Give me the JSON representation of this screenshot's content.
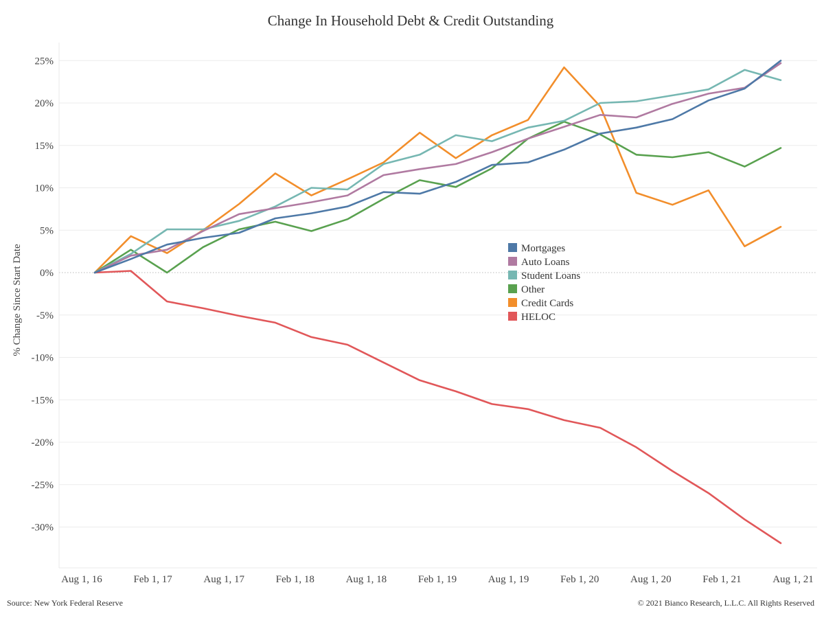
{
  "chart_data": {
    "type": "line",
    "title": "Change In Household Debt & Credit Outstanding",
    "xlabel": "",
    "ylabel": "% Change Since Start Date",
    "ylim": [
      -35,
      28
    ],
    "yticks": [
      25,
      20,
      15,
      10,
      5,
      0,
      -5,
      -10,
      -15,
      -20,
      -25,
      -30
    ],
    "ytick_labels": [
      "25%",
      "20%",
      "15%",
      "10%",
      "5%",
      "0%",
      "-5%",
      "-10%",
      "-15%",
      "-20%",
      "-25%",
      "-30%"
    ],
    "x_tick_labels": [
      "Aug 1, 16",
      "Feb 1, 17",
      "Aug 1, 17",
      "Feb 1, 18",
      "Aug 1, 18",
      "Feb 1, 19",
      "Aug 1, 19",
      "Feb 1, 20",
      "Aug 1, 20",
      "Feb 1, 21",
      "Aug 1, 21"
    ],
    "x": [
      "2016-Q3",
      "2016-Q4",
      "2017-Q1",
      "2017-Q2",
      "2017-Q3",
      "2017-Q4",
      "2018-Q1",
      "2018-Q2",
      "2018-Q3",
      "2018-Q4",
      "2019-Q1",
      "2019-Q2",
      "2019-Q3",
      "2019-Q4",
      "2020-Q1",
      "2020-Q2",
      "2020-Q3",
      "2020-Q4",
      "2021-Q1",
      "2021-Q2"
    ],
    "zero_line": true,
    "grid": "horizontal",
    "legend_position": "center-right",
    "series": [
      {
        "name": "Mortgages",
        "color": "#4e79a7",
        "values": [
          0,
          1.6,
          3.3,
          4.1,
          4.7,
          6.4,
          7.0,
          7.8,
          9.5,
          9.3,
          10.7,
          12.7,
          13.0,
          14.5,
          16.4,
          17.1,
          18.1,
          20.3,
          21.7,
          25.0
        ]
      },
      {
        "name": "Auto Loans",
        "color": "#b07aa1",
        "values": [
          0,
          2.0,
          2.7,
          4.9,
          6.9,
          7.6,
          8.3,
          9.1,
          11.5,
          12.2,
          12.8,
          14.2,
          15.8,
          17.2,
          18.6,
          18.3,
          19.9,
          21.1,
          21.8,
          24.7
        ]
      },
      {
        "name": "Student Loans",
        "color": "#76b7b2",
        "values": [
          0,
          2.2,
          5.1,
          5.1,
          6.1,
          7.8,
          10.0,
          9.8,
          12.8,
          13.9,
          16.2,
          15.5,
          17.1,
          17.9,
          20.0,
          20.2,
          20.9,
          21.6,
          23.9,
          22.7
        ]
      },
      {
        "name": "Other",
        "color": "#59a14f",
        "values": [
          0,
          2.7,
          0,
          3.0,
          5.1,
          6.0,
          4.9,
          6.3,
          8.7,
          10.9,
          10.1,
          12.3,
          15.8,
          17.8,
          16.3,
          13.9,
          13.6,
          14.2,
          12.5,
          14.7
        ]
      },
      {
        "name": "Credit Cards",
        "color": "#f28e2b",
        "values": [
          0,
          4.3,
          2.3,
          5.0,
          8.1,
          11.7,
          9.1,
          11.0,
          13.0,
          16.5,
          13.5,
          16.2,
          18.0,
          24.2,
          19.6,
          9.4,
          8.0,
          9.7,
          3.1,
          5.4
        ]
      },
      {
        "name": "HELOC",
        "color": "#e15759",
        "values": [
          0,
          0.2,
          -3.4,
          -4.2,
          -5.1,
          -5.9,
          -7.6,
          -8.5,
          -10.6,
          -12.7,
          -14.0,
          -15.5,
          -16.1,
          -17.4,
          -18.3,
          -20.6,
          -23.4,
          -26.0,
          -29.1,
          -31.9
        ]
      }
    ]
  },
  "footer": {
    "source": "Source: New York Federal Reserve",
    "copyright": "© 2021 Bianco Research, L.L.C. All Rights Reserved"
  }
}
